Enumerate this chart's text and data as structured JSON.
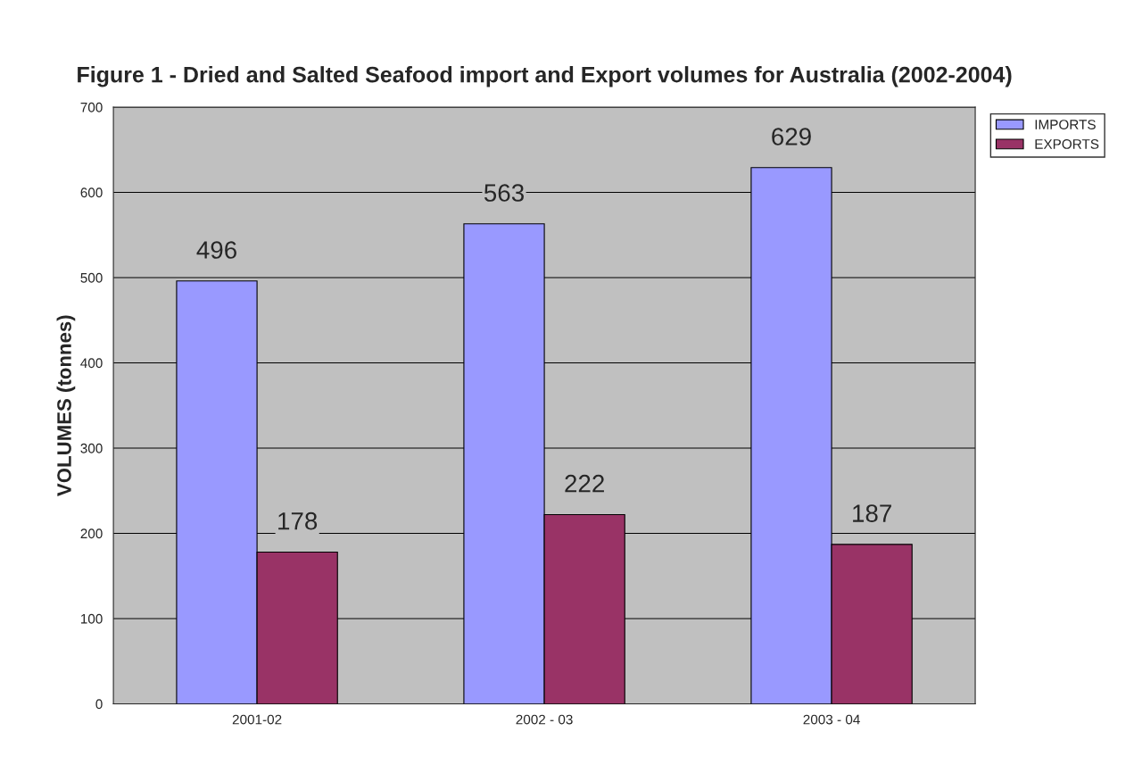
{
  "chart_data": {
    "type": "bar",
    "title": "Figure 1 - Dried and Salted Seafood import and Export volumes for Australia (2002-2004)",
    "ylabel": "VOLUMES (tonnes)",
    "categories": [
      "2001-02",
      "2002 - 03",
      "2003 - 04"
    ],
    "series": [
      {
        "name": "IMPORTS",
        "color": "#9999ff",
        "values": [
          496,
          563,
          629
        ]
      },
      {
        "name": "EXPORTS",
        "color": "#993366",
        "values": [
          178,
          222,
          187
        ]
      }
    ],
    "ylim": [
      0,
      700
    ],
    "yticks": [
      0,
      100,
      200,
      300,
      400,
      500,
      600,
      700
    ],
    "grid": "y",
    "legend": "top right",
    "data_labels": true
  }
}
